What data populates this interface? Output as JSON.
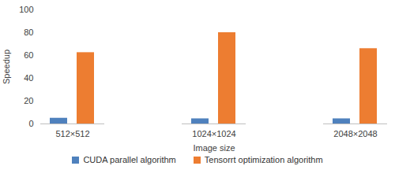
{
  "chart_data": {
    "type": "bar",
    "categories": [
      "512×512",
      "1024×1024",
      "2048×2048"
    ],
    "series": [
      {
        "name": "CUDA parallel algorithm",
        "color": "#4f81bd",
        "values": [
          5,
          4.5,
          4.5
        ]
      },
      {
        "name": "Tensorrt optimization algorithm",
        "color": "#ed7d31",
        "values": [
          62.5,
          80,
          66
        ]
      }
    ],
    "x_label": "Image size",
    "y_label": "Speedup",
    "ylim": [
      0,
      100
    ],
    "yticks": [
      0,
      20,
      40,
      60,
      80,
      100
    ],
    "grid": false,
    "legend": "bottom"
  }
}
